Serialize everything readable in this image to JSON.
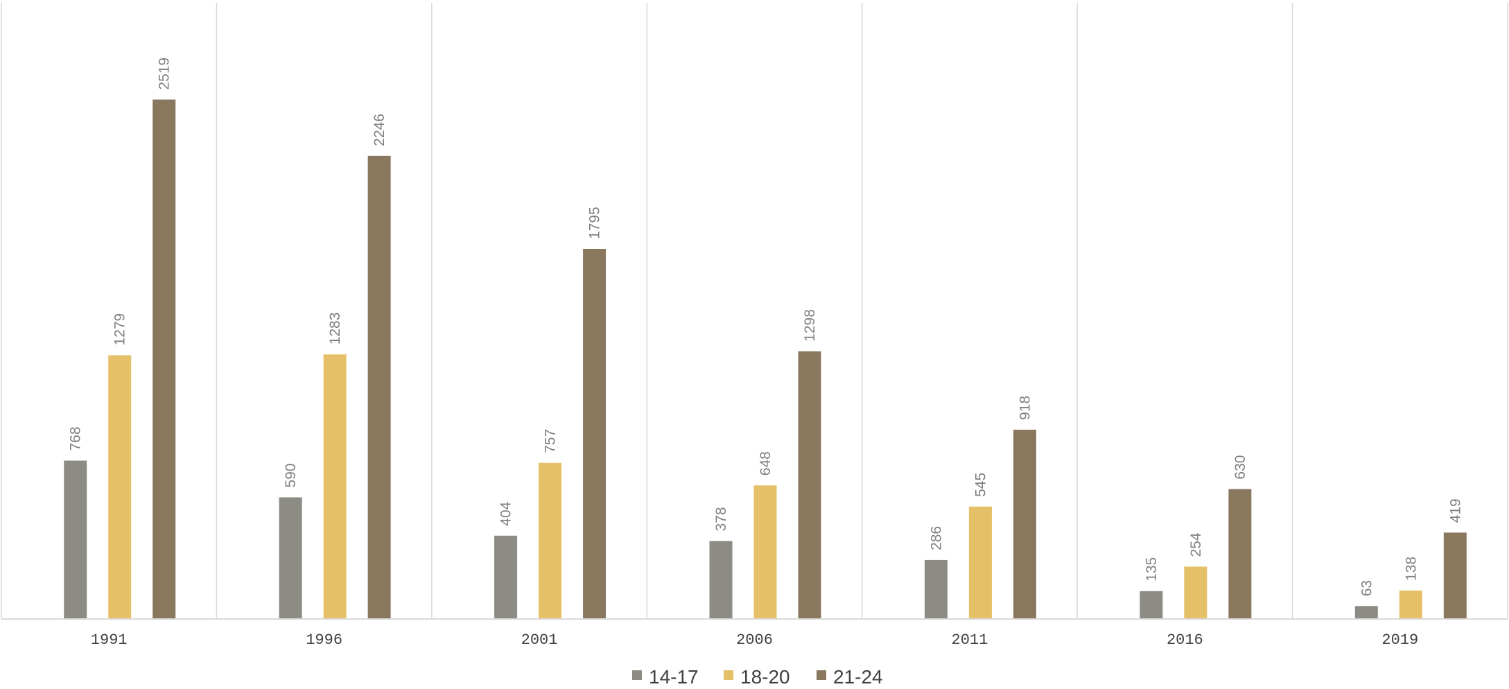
{
  "chart_data": {
    "type": "bar",
    "title": "",
    "xlabel": "",
    "ylabel": "",
    "categories": [
      "1991",
      "1996",
      "2001",
      "2006",
      "2011",
      "2016",
      "2019"
    ],
    "series": [
      {
        "name": "14-17",
        "color": "#8c8c84",
        "values": [
          768,
          590,
          404,
          378,
          286,
          135,
          63
        ]
      },
      {
        "name": "18-20",
        "color": "#e6c068",
        "values": [
          1279,
          1283,
          757,
          648,
          545,
          254,
          138
        ]
      },
      {
        "name": "21-24",
        "color": "#89785e",
        "values": [
          2519,
          2246,
          1795,
          1298,
          918,
          630,
          419
        ]
      }
    ],
    "ylim": [
      0,
      3000
    ],
    "grid": false,
    "category_separators": true,
    "data_labels": true,
    "legend_position": "bottom"
  }
}
